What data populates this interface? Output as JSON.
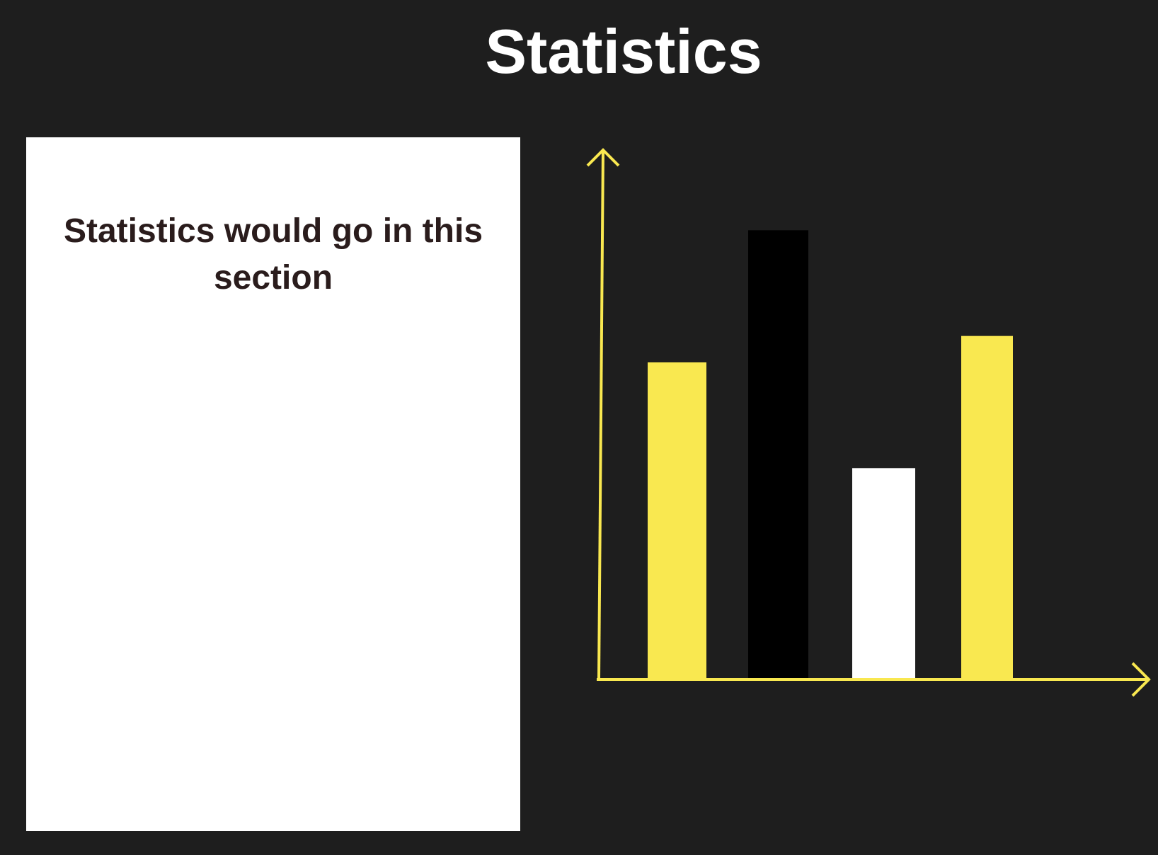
{
  "header": {
    "title": "Statistics"
  },
  "panel": {
    "text": "Statistics would go in this section"
  },
  "colors": {
    "background": "#1e1e1e",
    "accent": "#f9e850",
    "panel": "#ffffff"
  },
  "chart_data": {
    "type": "bar",
    "categories": [
      "",
      "",
      "",
      ""
    ],
    "values": [
      48,
      68,
      32,
      52
    ],
    "colors": [
      "#f9e850",
      "#000000",
      "#ffffff",
      "#f9e850"
    ],
    "ylim": [
      0,
      75
    ],
    "grid": false,
    "legend": "none",
    "xlabel": "",
    "ylabel": ""
  }
}
